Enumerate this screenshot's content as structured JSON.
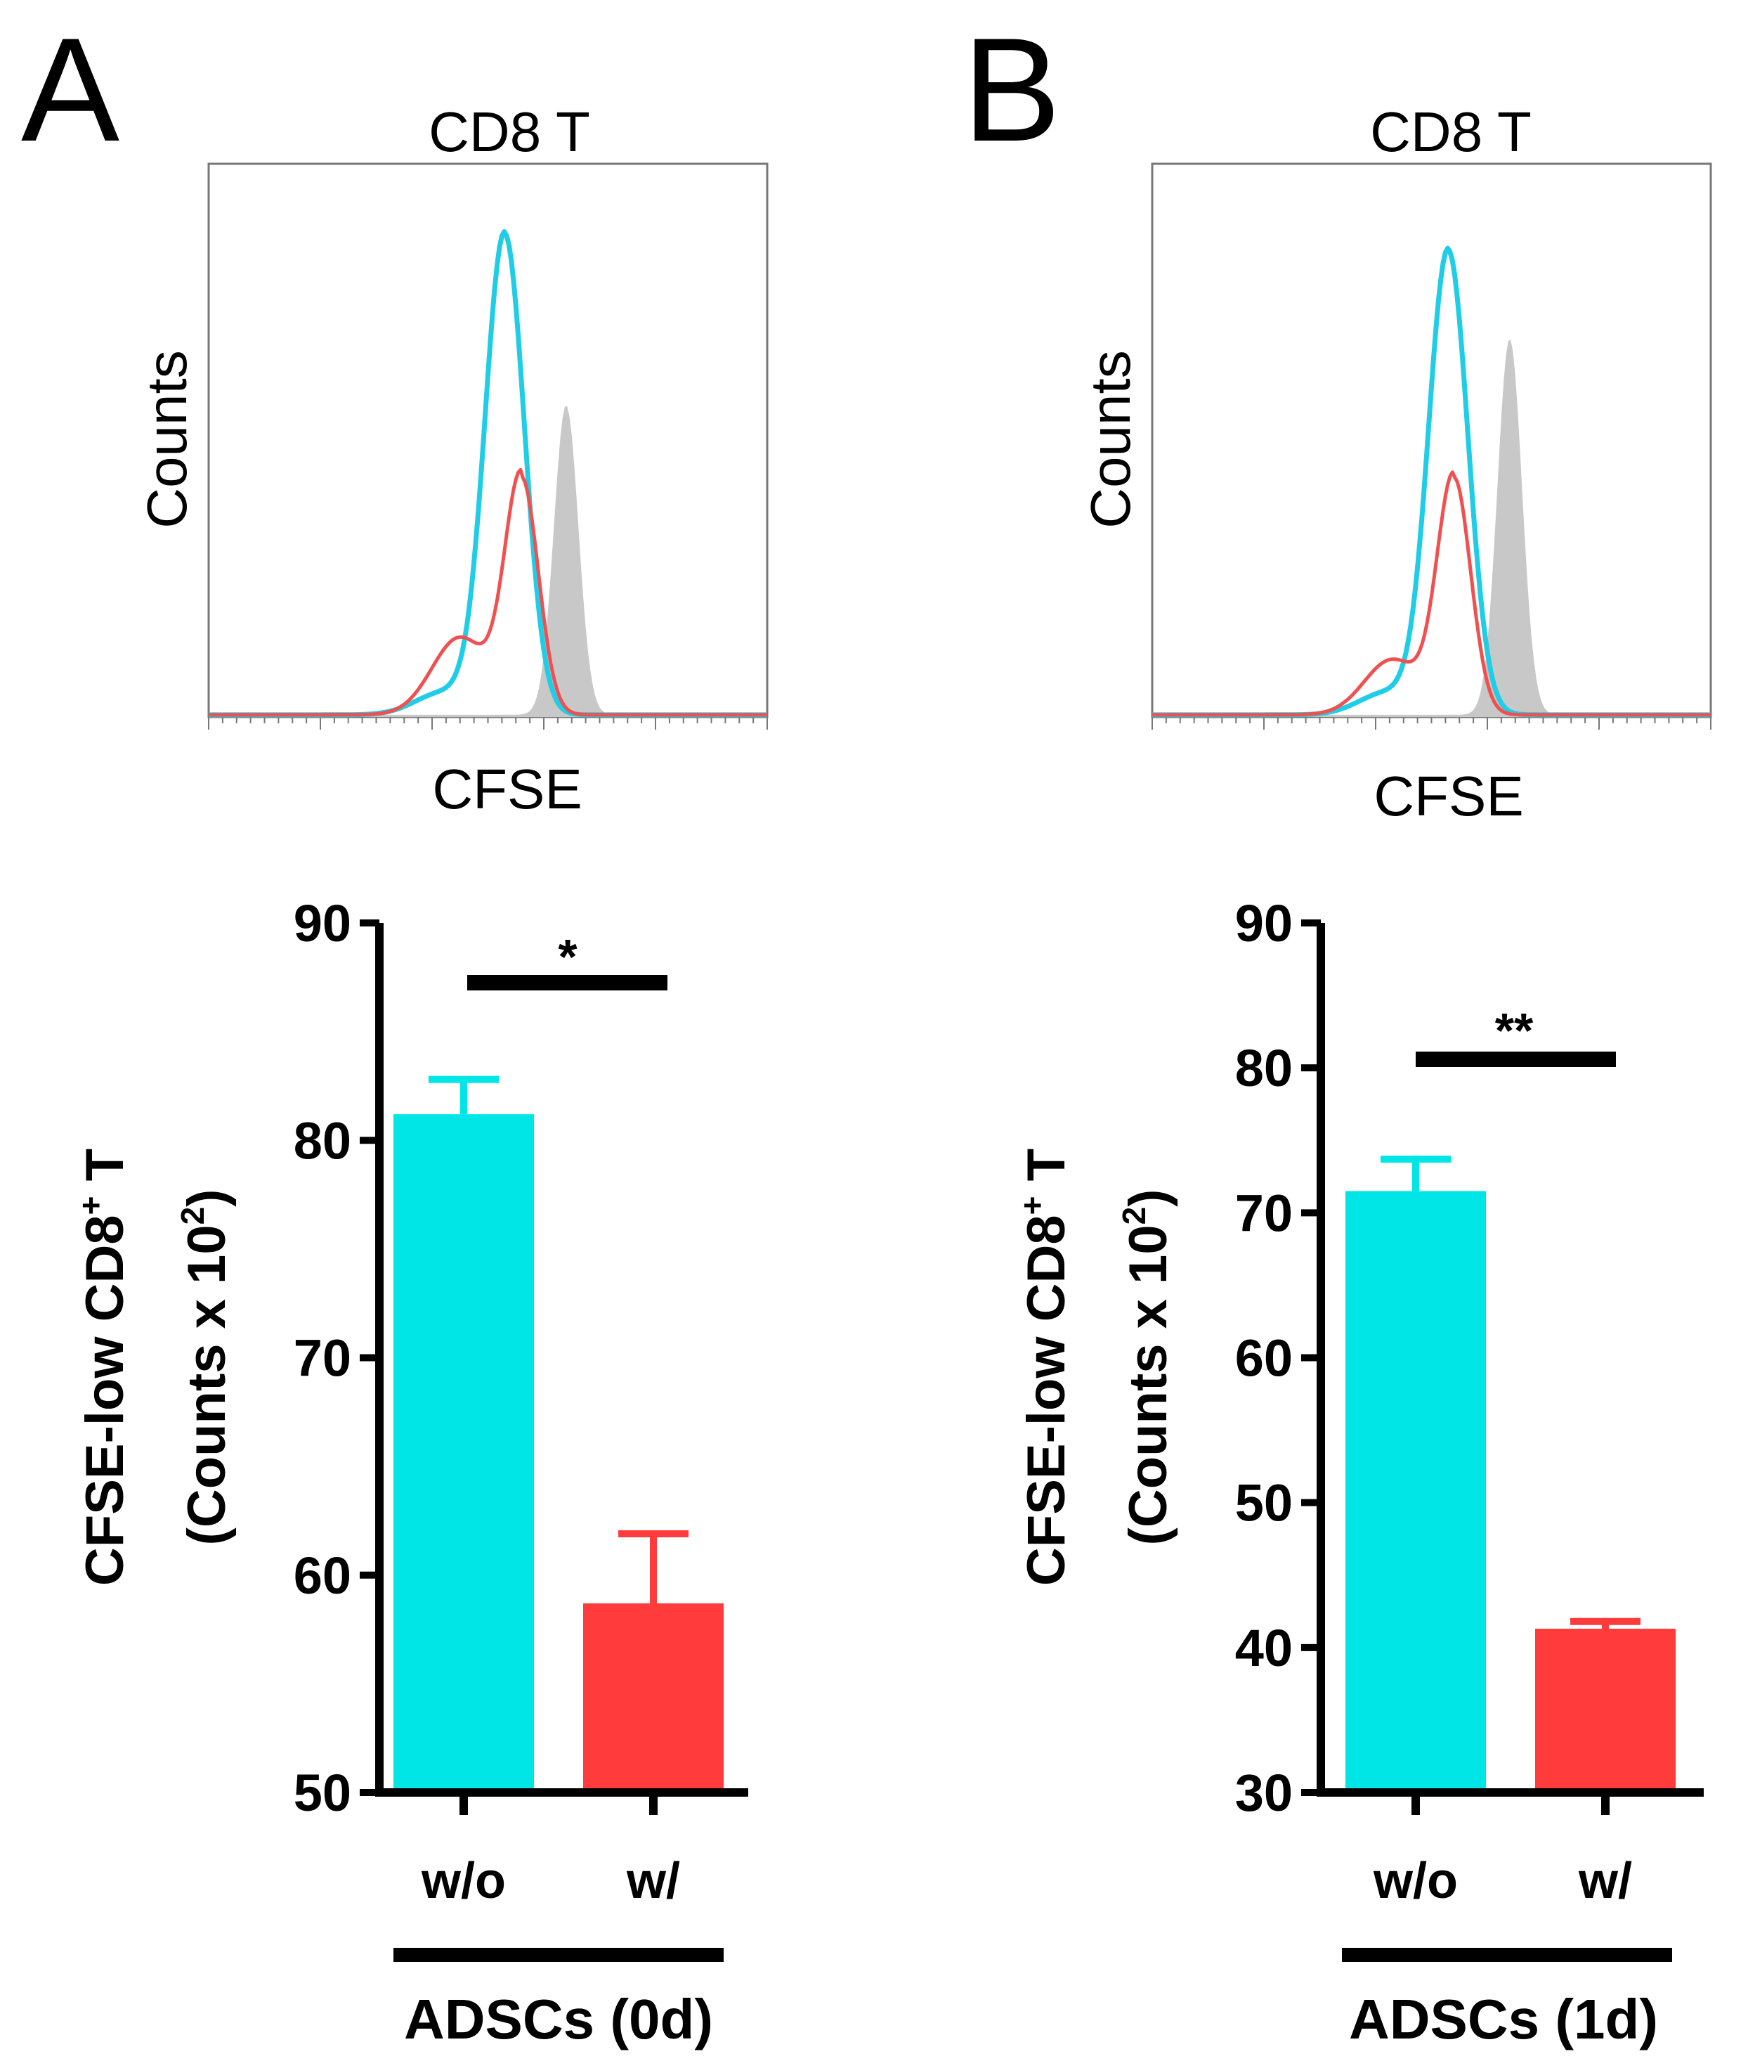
{
  "panels": [
    {
      "letter": "A",
      "hist": {
        "title": "CD8 T",
        "xlabel": "CFSE",
        "ylabel": "Counts",
        "series": [
          {
            "color": "#c8c8c8",
            "fill": true,
            "peak_x": 0.64,
            "height": 0.56,
            "width": 0.022,
            "lower_tail": 0.0
          },
          {
            "color": "#1fcde6",
            "fill": false,
            "peak_x": 0.53,
            "height": 0.87,
            "width": 0.035,
            "lower_tail": 0.04
          },
          {
            "color": "#f05050",
            "fill": false,
            "peak_x": 0.56,
            "height": 0.43,
            "width": 0.03,
            "lower_tail": 0.14
          }
        ]
      },
      "bar": {
        "ylabel_line1": "CFSE-low CD8",
        "ylabel_sup1": "+",
        "ylabel_line1_end": " T",
        "ylabel_line2": "(Counts x 10",
        "ylabel_sup2": "2",
        "ylabel_line2_end": ")",
        "ylim": [
          50,
          90
        ],
        "ticks": [
          "50",
          "60",
          "70",
          "80",
          "90"
        ],
        "categories": [
          "w/o",
          "w/"
        ],
        "values": [
          81.2,
          58.7
        ],
        "errors": [
          1.6,
          3.2
        ],
        "colors": [
          "#00e6e6",
          "#ff3b3b"
        ],
        "group_label": "ADSCs (0d)",
        "significance": "*"
      }
    },
    {
      "letter": "B",
      "hist": {
        "title": "CD8 T",
        "xlabel": "CFSE",
        "ylabel": "Counts",
        "series": [
          {
            "color": "#c8c8c8",
            "fill": true,
            "peak_x": 0.64,
            "height": 0.68,
            "width": 0.022,
            "lower_tail": 0.0
          },
          {
            "color": "#1fcde6",
            "fill": false,
            "peak_x": 0.53,
            "height": 0.84,
            "width": 0.035,
            "lower_tail": 0.04
          },
          {
            "color": "#f05050",
            "fill": false,
            "peak_x": 0.54,
            "height": 0.43,
            "width": 0.03,
            "lower_tail": 0.1
          }
        ]
      },
      "bar": {
        "ylabel_line1": "CFSE-low CD8",
        "ylabel_sup1": "+",
        "ylabel_line1_end": " T",
        "ylabel_line2": "(Counts x 10",
        "ylabel_sup2": "2",
        "ylabel_line2_end": ")",
        "ylim": [
          30,
          90
        ],
        "ticks": [
          "30",
          "40",
          "50",
          "60",
          "70",
          "80",
          "90"
        ],
        "categories": [
          "w/o",
          "w/"
        ],
        "values": [
          71.5,
          41.3
        ],
        "errors": [
          2.2,
          0.5
        ],
        "colors": [
          "#00e6e6",
          "#ff3b3b"
        ],
        "group_label": "ADSCs (1d)",
        "significance": "**"
      }
    }
  ],
  "chart_data": [
    {
      "type": "line",
      "title": "CD8 T",
      "xlabel": "CFSE",
      "ylabel": "Counts",
      "series_colors": [
        "#c8c8c8",
        "#1fcde6",
        "#f05050"
      ],
      "note": "flow cytometry histogram, unlabeled ticks"
    },
    {
      "type": "bar",
      "categories": [
        "w/o",
        "w/"
      ],
      "values": [
        81.2,
        58.7
      ],
      "errors": [
        1.6,
        3.2
      ],
      "ylim": [
        50,
        90
      ],
      "xlabel": "ADSCs (0d)",
      "ylabel": "CFSE-low CD8+ T (Counts x 10^2)",
      "significance": "*"
    },
    {
      "type": "line",
      "title": "CD8 T",
      "xlabel": "CFSE",
      "ylabel": "Counts",
      "series_colors": [
        "#c8c8c8",
        "#1fcde6",
        "#f05050"
      ],
      "note": "flow cytometry histogram, unlabeled ticks"
    },
    {
      "type": "bar",
      "categories": [
        "w/o",
        "w/"
      ],
      "values": [
        71.5,
        41.3
      ],
      "errors": [
        2.2,
        0.5
      ],
      "ylim": [
        30,
        90
      ],
      "xlabel": "ADSCs (1d)",
      "ylabel": "CFSE-low CD8+ T (Counts x 10^2)",
      "significance": "**"
    }
  ]
}
